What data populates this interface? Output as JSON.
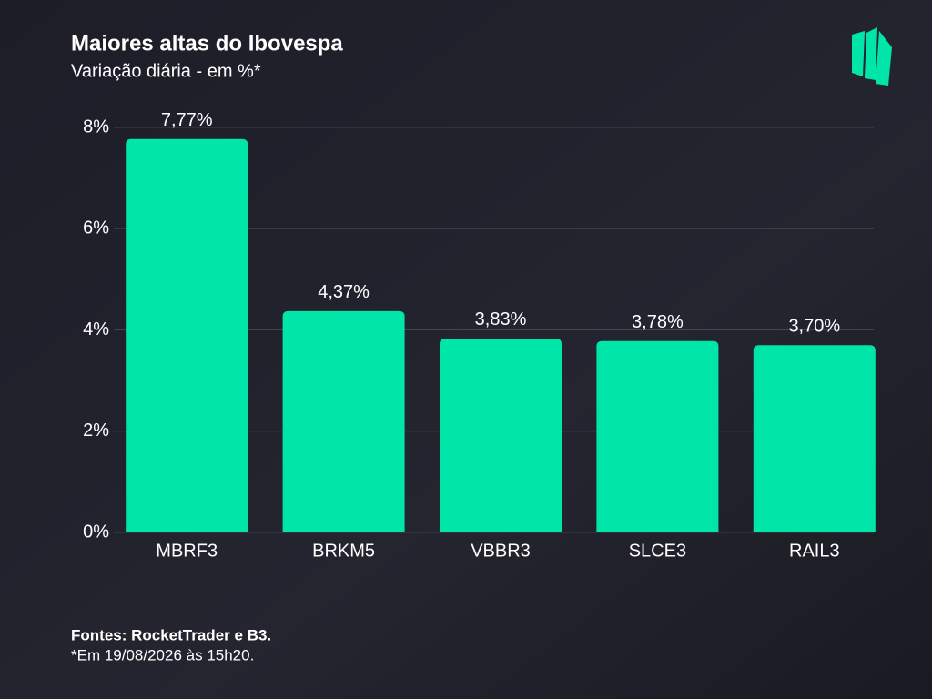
{
  "chart_data": {
    "type": "bar",
    "title": "Maiores altas do Ibovespa",
    "subtitle": "Variação diária - em %*",
    "categories": [
      "MBRF3",
      "BRKM5",
      "VBBR3",
      "SLCE3",
      "RAIL3"
    ],
    "values": [
      7.77,
      4.37,
      3.83,
      3.78,
      3.7
    ],
    "value_labels": [
      "7,77%",
      "4,37%",
      "3,83%",
      "3,78%",
      "3,70%"
    ],
    "color": "#00e6a8",
    "ylim": [
      0,
      8
    ],
    "yticks": [
      {
        "value": 0,
        "label": "0%"
      },
      {
        "value": 2,
        "label": "2%"
      },
      {
        "value": 4,
        "label": "4%"
      },
      {
        "value": 6,
        "label": "6%"
      },
      {
        "value": 8,
        "label": "8%"
      }
    ],
    "grid": true,
    "source": "Fontes: RocketTrader e B3.",
    "note": "*Em 19/08/2026 às 15h20."
  }
}
